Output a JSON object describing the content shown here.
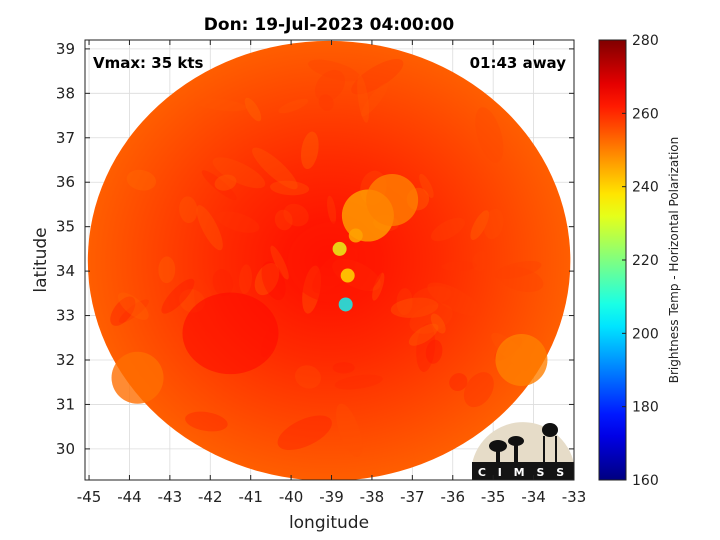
{
  "chart_data": {
    "type": "heatmap",
    "title": "Don: 19-Jul-2023 04:00:00",
    "xlabel": "longitude",
    "ylabel": "latitude",
    "xlim": [
      -45.1,
      -33
    ],
    "ylim": [
      29.3,
      39.2
    ],
    "x_ticks": [
      -45,
      -44,
      -43,
      -42,
      -41,
      -40,
      -39,
      -38,
      -37,
      -36,
      -35,
      -34,
      -33
    ],
    "y_ticks": [
      30,
      31,
      32,
      33,
      34,
      35,
      36,
      37,
      38,
      39
    ],
    "grid": true,
    "annotations": {
      "top_left": "Vmax: 35 kts",
      "top_right": "01:43 away"
    },
    "colorbar": {
      "label": "Brightness Temp - Horizontal Polarization",
      "range": [
        160,
        280
      ],
      "ticks": [
        160,
        180,
        200,
        220,
        240,
        260,
        280
      ],
      "colormap": "jet"
    },
    "swath": {
      "center_lon": -39.06,
      "center_lat": 34.23,
      "radius_lon": 5.97,
      "radius_lat": 4.95,
      "background_tb": 258
    },
    "features": [
      {
        "lon": -38.9,
        "lat": 34.2,
        "tb": 262,
        "name": "core"
      },
      {
        "lon": -38.8,
        "lat": 34.5,
        "tb": 232,
        "name": "convection-1"
      },
      {
        "lon": -38.6,
        "lat": 33.9,
        "tb": 238,
        "name": "convection-2"
      },
      {
        "lon": -38.65,
        "lat": 33.25,
        "tb": 205,
        "name": "hot-tower"
      },
      {
        "lon": -38.4,
        "lat": 34.8,
        "tb": 244,
        "name": "convection-3"
      },
      {
        "lon": -38.1,
        "lat": 35.25,
        "tb": 246,
        "name": "band-1"
      },
      {
        "lon": -37.5,
        "lat": 35.6,
        "tb": 250,
        "name": "band-2"
      },
      {
        "lon": -41.5,
        "lat": 32.6,
        "tb": 264,
        "name": "cold-sector"
      },
      {
        "lon": -43.8,
        "lat": 31.6,
        "tb": 252,
        "name": "warm-sw"
      },
      {
        "lon": -34.3,
        "lat": 32.0,
        "tb": 250,
        "name": "warm-se"
      }
    ],
    "logo_text": "CIMSS"
  }
}
